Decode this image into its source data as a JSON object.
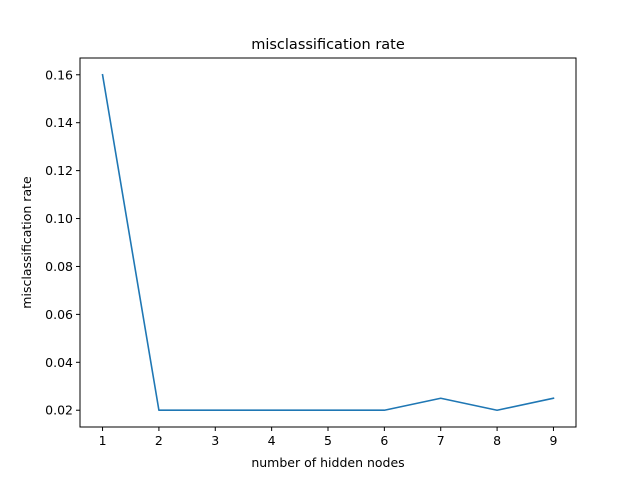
{
  "chart_data": {
    "type": "line",
    "title": "misclassification rate",
    "xlabel": "number of hidden nodes",
    "ylabel": "misclassification rate",
    "x": [
      1,
      2,
      3,
      4,
      5,
      6,
      7,
      8,
      9
    ],
    "series": [
      {
        "values": [
          0.16,
          0.02,
          0.02,
          0.02,
          0.02,
          0.02,
          0.025,
          0.02,
          0.025
        ],
        "color": "#1f77b4"
      }
    ],
    "xticks": [
      1,
      2,
      3,
      4,
      5,
      6,
      7,
      8,
      9
    ],
    "xtick_labels": [
      "1",
      "2",
      "3",
      "4",
      "5",
      "6",
      "7",
      "8",
      "9"
    ],
    "yticks": [
      0.02,
      0.04,
      0.06,
      0.08,
      0.1,
      0.12,
      0.14,
      0.16
    ],
    "ytick_labels": [
      "0.02",
      "0.04",
      "0.06",
      "0.08",
      "0.10",
      "0.12",
      "0.14",
      "0.16"
    ],
    "xlim": [
      0.6,
      9.4
    ],
    "ylim": [
      0.013,
      0.167
    ],
    "grid": false,
    "legend": "none"
  }
}
